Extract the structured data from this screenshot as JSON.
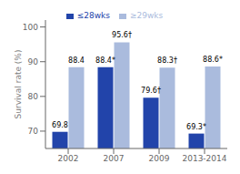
{
  "chart_data": {
    "type": "bar",
    "categories": [
      "2002",
      "2007",
      "2009",
      "2013-2014"
    ],
    "series": [
      {
        "name": "≤28wks",
        "color": "#2244aa",
        "values": [
          69.8,
          88.4,
          79.6,
          69.3
        ],
        "value_labels": [
          "69.8",
          "88.4*",
          "79.6†",
          "69.3*"
        ]
      },
      {
        "name": "≥29wks",
        "color": "#aabbdd",
        "values": [
          88.4,
          95.6,
          88.3,
          88.6
        ],
        "value_labels": [
          "88.4",
          "95.6†",
          "88.3†",
          "88.6*"
        ]
      }
    ],
    "ylabel": "Survival rate (%)",
    "ylim": [
      65,
      102
    ],
    "yticks": [
      70,
      80,
      90,
      100
    ],
    "data_labels": true,
    "legend": "top"
  }
}
